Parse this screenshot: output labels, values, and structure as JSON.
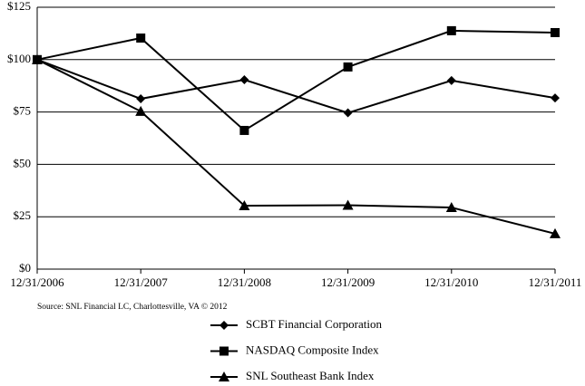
{
  "chart_data": {
    "type": "line",
    "source": "Source: SNL Financial LC, Charlottesville, VA © 2012",
    "categories": [
      "12/31/2006",
      "12/31/2007",
      "12/31/2008",
      "12/31/2009",
      "12/31/2010",
      "12/31/2011"
    ],
    "series": [
      {
        "name": "SCBT Financial Corporation",
        "color": "#000000",
        "marker": "diamond",
        "values": [
          100,
          81.3,
          90.4,
          74.6,
          90.0,
          81.7
        ]
      },
      {
        "name": "NASDAQ Composite Index",
        "color": "#000000",
        "marker": "square",
        "values": [
          100,
          110.3,
          66.2,
          96.5,
          113.8,
          112.9
        ]
      },
      {
        "name": "SNL Southeast Bank Index",
        "color": "#000000",
        "marker": "triangle",
        "values": [
          100,
          75.3,
          30.3,
          30.5,
          29.4,
          16.9
        ]
      }
    ],
    "ylim": [
      0,
      125
    ],
    "yticks": [
      {
        "value": 0,
        "label": "$0"
      },
      {
        "value": 25,
        "label": "$25"
      },
      {
        "value": 50,
        "label": "$50"
      },
      {
        "value": 75,
        "label": "$75"
      },
      {
        "value": 100,
        "label": "$100"
      },
      {
        "value": 125,
        "label": "$125"
      }
    ],
    "grid": true
  }
}
